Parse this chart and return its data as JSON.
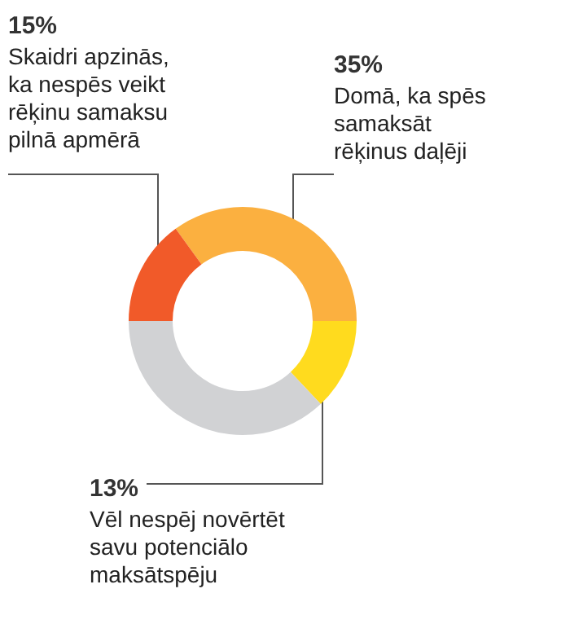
{
  "chart_data": {
    "type": "donut",
    "categories": [
      "Domā, ka spēs samaksāt rēķinus daļēji",
      "Vēl nespēj novērtēt savu potenciālo maksātspēju",
      null,
      "Skaidri apzinās, ka nespēs veikt rēķinu samaksu pilnā apmērā"
    ],
    "values": [
      35,
      13,
      37,
      15
    ],
    "colors": [
      "#fbb040",
      "#ffdb1e",
      "#d1d2d4",
      "#f15a29"
    ],
    "value_labels": [
      "35%",
      "13%",
      null,
      "15%"
    ],
    "legend": false
  }
}
